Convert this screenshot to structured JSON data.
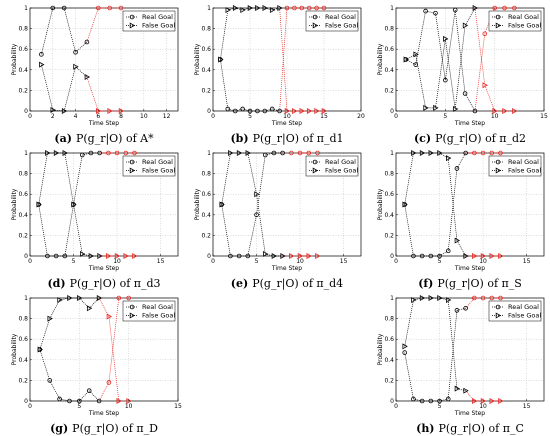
{
  "figure": {
    "colors": {
      "before": "#000000",
      "after": "#e8201c",
      "grid": "#bbbbbb"
    }
  },
  "chart_data": [
    {
      "type": "line",
      "caption": {
        "label": "(a)",
        "text": "P(g_r|O) of A*"
      },
      "xlabel": "Time Step",
      "ylabel": "Probability",
      "xlim": [
        0,
        13
      ],
      "ylim": [
        0,
        1
      ],
      "xticks": [
        0,
        2,
        4,
        6,
        8,
        10,
        12
      ],
      "yticks": [
        0,
        0.2,
        0.4,
        0.6,
        0.8,
        1
      ],
      "legend": {
        "position": "top-right",
        "entries": [
          "Real Goal",
          "False Goal"
        ]
      },
      "x": [
        1,
        2,
        3,
        4,
        5,
        6,
        7,
        8
      ],
      "switch_x": 5,
      "series": [
        {
          "name": "Real Goal",
          "marker": "circle",
          "values": [
            0.55,
            1.0,
            1.0,
            0.57,
            0.67,
            1.0,
            1.0,
            1.0
          ]
        },
        {
          "name": "False Goal",
          "marker": "triangle",
          "values": [
            0.45,
            0.01,
            0.0,
            0.43,
            0.33,
            0.0,
            0.0,
            0.0
          ]
        }
      ]
    },
    {
      "type": "line",
      "caption": {
        "label": "(b)",
        "text": "P(g_r|O) of π_d1"
      },
      "xlabel": "Time Step",
      "ylabel": "Probability",
      "xlim": [
        0,
        20
      ],
      "ylim": [
        0,
        1
      ],
      "xticks": [
        0,
        5,
        10,
        15,
        20
      ],
      "yticks": [
        0,
        0.2,
        0.4,
        0.6,
        0.8,
        1
      ],
      "legend": {
        "position": "top-right",
        "entries": [
          "Real Goal",
          "False Goal"
        ]
      },
      "x": [
        1,
        2,
        3,
        4,
        5,
        6,
        7,
        8,
        9,
        10,
        11,
        12,
        13,
        14,
        15
      ],
      "switch_x": 9,
      "series": [
        {
          "name": "Real Goal",
          "marker": "circle",
          "values": [
            0.5,
            0.02,
            0.0,
            0.02,
            0.0,
            0.0,
            0.0,
            0.02,
            0.0,
            1.0,
            1.0,
            1.0,
            1.0,
            1.0,
            1.0
          ]
        },
        {
          "name": "False Goal",
          "marker": "triangle",
          "values": [
            0.5,
            0.98,
            1.0,
            0.98,
            1.0,
            1.0,
            1.0,
            0.98,
            1.0,
            0.0,
            0.0,
            0.0,
            0.0,
            0.0,
            0.0
          ]
        }
      ]
    },
    {
      "type": "line",
      "caption": {
        "label": "(c)",
        "text": "P(g_r|O) of π_d2"
      },
      "xlabel": "Time Step",
      "ylabel": "Probability",
      "xlim": [
        0,
        15
      ],
      "ylim": [
        0,
        1
      ],
      "xticks": [
        0,
        5,
        10,
        15
      ],
      "yticks": [
        0,
        0.2,
        0.4,
        0.6,
        0.8,
        1
      ],
      "legend": {
        "position": "top-right",
        "entries": [
          "Real Goal",
          "False Goal"
        ]
      },
      "x": [
        1,
        2,
        3,
        4,
        5,
        6,
        7,
        8,
        9,
        10,
        11,
        12
      ],
      "switch_x": 8,
      "series": [
        {
          "name": "Real Goal",
          "marker": "circle",
          "values": [
            0.5,
            0.45,
            0.97,
            0.95,
            0.3,
            0.98,
            0.17,
            0.0,
            0.75,
            1.0,
            1.0,
            1.0
          ]
        },
        {
          "name": "False Goal",
          "marker": "triangle",
          "values": [
            0.5,
            0.55,
            0.03,
            0.03,
            0.7,
            0.02,
            0.83,
            1.0,
            0.25,
            0.0,
            0.0,
            0.0
          ]
        }
      ]
    },
    {
      "type": "line",
      "caption": {
        "label": "(d)",
        "text": "P(g_r|O) of π_d3"
      },
      "xlabel": "Time Step",
      "ylabel": "Probability",
      "xlim": [
        0,
        17
      ],
      "ylim": [
        0,
        1
      ],
      "xticks": [
        0,
        5,
        10,
        15
      ],
      "yticks": [
        0,
        0.2,
        0.4,
        0.6,
        0.8,
        1
      ],
      "legend": {
        "position": "top-right",
        "entries": [
          "Real Goal",
          "False Goal"
        ]
      },
      "x": [
        1,
        2,
        3,
        4,
        5,
        6,
        7,
        8,
        9,
        10,
        11,
        12
      ],
      "switch_x": 8,
      "series": [
        {
          "name": "Real Goal",
          "marker": "circle",
          "values": [
            0.5,
            0.0,
            0.0,
            0.0,
            0.5,
            0.98,
            1.0,
            1.0,
            1.0,
            1.0,
            1.0,
            1.0
          ]
        },
        {
          "name": "False Goal",
          "marker": "triangle",
          "values": [
            0.5,
            1.0,
            1.0,
            1.0,
            0.5,
            0.02,
            0.0,
            0.0,
            0.0,
            0.0,
            0.0,
            0.0
          ]
        }
      ]
    },
    {
      "type": "line",
      "caption": {
        "label": "(e)",
        "text": "P(g_r|O) of π_d4"
      },
      "xlabel": "Time Step",
      "ylabel": "Probability",
      "xlim": [
        0,
        17
      ],
      "ylim": [
        0,
        1
      ],
      "xticks": [
        0,
        5,
        10,
        15
      ],
      "yticks": [
        0,
        0.2,
        0.4,
        0.6,
        0.8,
        1
      ],
      "legend": {
        "position": "top-right",
        "entries": [
          "Real Goal",
          "False Goal"
        ]
      },
      "x": [
        1,
        2,
        3,
        4,
        5,
        6,
        7,
        8,
        9,
        10,
        11,
        12
      ],
      "switch_x": 8,
      "series": [
        {
          "name": "Real Goal",
          "marker": "circle",
          "values": [
            0.5,
            0.0,
            0.0,
            0.0,
            0.4,
            0.98,
            1.0,
            1.0,
            1.0,
            1.0,
            1.0,
            1.0
          ]
        },
        {
          "name": "False Goal",
          "marker": "triangle",
          "values": [
            0.5,
            1.0,
            1.0,
            1.0,
            0.6,
            0.02,
            0.0,
            0.0,
            0.0,
            0.0,
            0.0,
            0.0
          ]
        }
      ]
    },
    {
      "type": "line",
      "caption": {
        "label": "(f)",
        "text": "P(g_r|O) of π_S"
      },
      "xlabel": "Time Step",
      "ylabel": "Probability",
      "xlim": [
        0,
        17
      ],
      "ylim": [
        0,
        1
      ],
      "xticks": [
        0,
        5,
        10,
        15
      ],
      "yticks": [
        0,
        0.2,
        0.4,
        0.6,
        0.8,
        1
      ],
      "legend": {
        "position": "top-right",
        "entries": [
          "Real Goal",
          "False Goal"
        ]
      },
      "x": [
        1,
        2,
        3,
        4,
        5,
        6,
        7,
        8,
        9,
        10,
        11,
        12
      ],
      "switch_x": 8,
      "series": [
        {
          "name": "Real Goal",
          "marker": "circle",
          "values": [
            0.5,
            0.0,
            0.0,
            0.0,
            0.0,
            0.05,
            0.85,
            1.0,
            1.0,
            1.0,
            1.0,
            1.0
          ]
        },
        {
          "name": "False Goal",
          "marker": "triangle",
          "values": [
            0.5,
            1.0,
            1.0,
            1.0,
            1.0,
            0.95,
            0.15,
            0.0,
            0.0,
            0.0,
            0.0,
            0.0
          ]
        }
      ]
    },
    {
      "type": "line",
      "caption": {
        "label": "(g)",
        "text": "P(g_r|O) of π_D"
      },
      "xlabel": "Time Step",
      "ylabel": "Probability",
      "xlim": [
        0,
        15
      ],
      "ylim": [
        0,
        1
      ],
      "xticks": [
        0,
        5,
        10,
        15
      ],
      "yticks": [
        0,
        0.2,
        0.4,
        0.6,
        0.8,
        1
      ],
      "legend": {
        "position": "top-right",
        "entries": [
          "Real Goal",
          "False Goal"
        ]
      },
      "x": [
        1,
        2,
        3,
        4,
        5,
        6,
        7,
        8,
        9,
        10
      ],
      "switch_x": 7,
      "series": [
        {
          "name": "Real Goal",
          "marker": "circle",
          "values": [
            0.5,
            0.2,
            0.02,
            0.0,
            0.0,
            0.1,
            0.0,
            0.18,
            1.0,
            1.0
          ]
        },
        {
          "name": "False Goal",
          "marker": "triangle",
          "values": [
            0.5,
            0.8,
            0.98,
            1.0,
            1.0,
            0.9,
            1.0,
            0.82,
            0.0,
            0.0
          ]
        }
      ]
    },
    {
      "type": "line",
      "caption": {
        "label": "(h)",
        "text": "P(g_r|O) of π_C"
      },
      "xlabel": "Time Step",
      "ylabel": "Probability",
      "xlim": [
        0,
        17
      ],
      "ylim": [
        0,
        1
      ],
      "xticks": [
        0,
        5,
        10,
        15
      ],
      "yticks": [
        0,
        0.2,
        0.4,
        0.6,
        0.8,
        1
      ],
      "legend": {
        "position": "top-right",
        "entries": [
          "Real Goal",
          "False Goal"
        ]
      },
      "x": [
        1,
        2,
        3,
        4,
        5,
        6,
        7,
        8,
        9,
        10,
        11,
        12
      ],
      "switch_x": 8,
      "series": [
        {
          "name": "Real Goal",
          "marker": "circle",
          "values": [
            0.47,
            0.02,
            0.0,
            0.0,
            0.0,
            0.02,
            0.88,
            0.9,
            1.0,
            1.0,
            1.0,
            1.0
          ]
        },
        {
          "name": "False Goal",
          "marker": "triangle",
          "values": [
            0.53,
            0.98,
            1.0,
            1.0,
            1.0,
            0.98,
            0.12,
            0.1,
            0.0,
            0.0,
            0.0,
            0.0
          ]
        }
      ]
    }
  ]
}
